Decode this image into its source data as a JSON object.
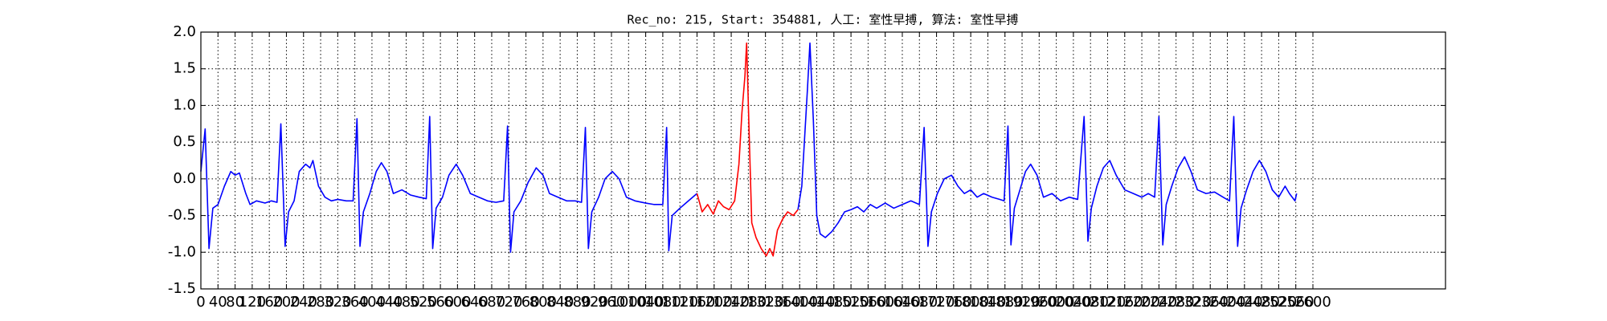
{
  "chart_data": {
    "type": "line",
    "title": "Rec_no: 215, Start: 354881, 人工: 室性早搏, 算法: 室性早搏",
    "x": [
      0,
      10,
      19,
      28,
      40,
      55,
      70,
      80,
      90,
      105,
      115,
      130,
      150,
      165,
      178,
      187,
      197,
      205,
      218,
      230,
      245,
      255,
      262,
      275,
      290,
      305,
      320,
      340,
      356,
      365,
      372,
      380,
      395,
      410,
      422,
      435,
      450,
      470,
      490,
      510,
      527,
      535,
      542,
      550,
      565,
      580,
      597,
      612,
      630,
      650,
      670,
      690,
      708,
      717,
      724,
      732,
      748,
      765,
      784,
      800,
      815,
      835,
      855,
      875,
      890,
      899,
      906,
      914,
      930,
      945,
      962,
      978,
      995,
      1015,
      1040,
      1060,
      1080,
      1089,
      1094,
      1102,
      1120,
      1140,
      1160,
      1172,
      1185,
      1198,
      1210,
      1222,
      1235,
      1248,
      1258,
      1265,
      1272,
      1276,
      1282,
      1288,
      1298,
      1310,
      1322,
      1330,
      1338,
      1348,
      1360,
      1372,
      1385,
      1396,
      1405,
      1412,
      1418,
      1424,
      1432,
      1440,
      1448,
      1460,
      1475,
      1490,
      1505,
      1520,
      1535,
      1550,
      1565,
      1580,
      1600,
      1620,
      1640,
      1660,
      1680,
      1691,
      1700,
      1708,
      1722,
      1738,
      1755,
      1770,
      1785,
      1800,
      1815,
      1830,
      1850,
      1868,
      1878,
      1887,
      1894,
      1902,
      1915,
      1928,
      1940,
      1955,
      1970,
      1990,
      2010,
      2030,
      2050,
      2065,
      2074,
      2082,
      2095,
      2110,
      2125,
      2140,
      2160,
      2180,
      2200,
      2215,
      2230,
      2240,
      2249,
      2257,
      2270,
      2285,
      2300,
      2315,
      2330,
      2350,
      2370,
      2390,
      2405,
      2415,
      2424,
      2432,
      2445,
      2460,
      2475,
      2490,
      2505,
      2520,
      2535,
      2545,
      2558,
      2562
    ],
    "series": [
      {
        "color": "#0000ff",
        "values": [
          0.1,
          0.68,
          -0.95,
          -0.4,
          -0.35,
          -0.1,
          0.1,
          0.05,
          0.08,
          -0.2,
          -0.35,
          -0.3,
          -0.33,
          -0.3,
          -0.32,
          0.75,
          -0.92,
          -0.45,
          -0.3,
          0.1,
          0.2,
          0.15,
          0.25,
          -0.1,
          -0.25,
          -0.3,
          -0.28,
          -0.3,
          -0.3,
          0.82,
          -0.92,
          -0.45,
          -0.2,
          0.1,
          0.22,
          0.1,
          -0.2,
          -0.15,
          -0.22,
          -0.25,
          -0.27,
          0.85,
          -0.95,
          -0.4,
          -0.25,
          0.05,
          0.2,
          0.05,
          -0.2,
          -0.25,
          -0.3,
          -0.32,
          -0.3,
          0.72,
          -1.0,
          -0.45,
          -0.3,
          -0.05,
          0.15,
          0.05,
          -0.2,
          -0.25,
          -0.3,
          -0.3,
          -0.32,
          0.7,
          -0.95,
          -0.45,
          -0.25,
          0.0,
          0.1,
          0.0,
          -0.25,
          -0.3,
          -0.33,
          -0.35,
          -0.35,
          0.7,
          -0.98,
          -0.5,
          -0.4,
          -0.3,
          -0.2,
          null,
          null,
          null,
          null,
          null,
          null,
          null,
          null,
          null,
          null,
          null,
          null,
          null,
          null,
          null,
          null,
          null,
          null,
          null,
          null,
          null,
          null,
          -0.42,
          -0.1,
          0.6,
          1.2,
          1.85,
          0.8,
          -0.5,
          -0.75,
          -0.8,
          -0.72,
          -0.6,
          -0.45,
          -0.42,
          -0.38,
          -0.45,
          -0.35,
          -0.4,
          -0.33,
          -0.4,
          -0.35,
          -0.3,
          -0.35,
          0.7,
          -0.92,
          -0.45,
          -0.2,
          0.0,
          0.05,
          -0.1,
          -0.2,
          -0.15,
          -0.25,
          -0.2,
          -0.25,
          -0.28,
          -0.3,
          0.72,
          -0.9,
          -0.4,
          -0.15,
          0.1,
          0.2,
          0.05,
          -0.25,
          -0.2,
          -0.3,
          -0.25,
          -0.28,
          0.85,
          -0.85,
          -0.4,
          -0.1,
          0.15,
          0.25,
          0.05,
          -0.15,
          -0.2,
          -0.25,
          -0.2,
          -0.25,
          0.85,
          -0.9,
          -0.35,
          -0.1,
          0.15,
          0.3,
          0.1,
          -0.15,
          -0.2,
          -0.18,
          -0.25,
          -0.3,
          0.85,
          -0.92,
          -0.4,
          -0.15,
          0.1,
          0.25,
          0.1,
          -0.15,
          -0.25,
          -0.1,
          -0.2,
          -0.3,
          -0.2
        ]
      },
      {
        "color": "#ff0000",
        "values": [
          null,
          null,
          null,
          null,
          null,
          null,
          null,
          null,
          null,
          null,
          null,
          null,
          null,
          null,
          null,
          null,
          null,
          null,
          null,
          null,
          null,
          null,
          null,
          null,
          null,
          null,
          null,
          null,
          null,
          null,
          null,
          null,
          null,
          null,
          null,
          null,
          null,
          null,
          null,
          null,
          null,
          null,
          null,
          null,
          null,
          null,
          null,
          null,
          null,
          null,
          null,
          null,
          null,
          null,
          null,
          null,
          null,
          null,
          null,
          null,
          null,
          null,
          null,
          null,
          null,
          null,
          null,
          null,
          null,
          null,
          null,
          null,
          null,
          null,
          null,
          null,
          null,
          null,
          null,
          null,
          null,
          null,
          -0.2,
          -0.45,
          -0.35,
          -0.48,
          -0.3,
          -0.38,
          -0.42,
          -0.3,
          0.2,
          0.9,
          1.4,
          1.85,
          0.6,
          -0.6,
          -0.8,
          -0.95,
          -1.05,
          -0.95,
          -1.05,
          -0.7,
          -0.55,
          -0.45,
          -0.5,
          -0.42,
          null,
          null,
          null,
          null,
          null,
          null,
          null,
          null,
          null,
          null,
          null,
          null,
          null,
          null,
          null,
          null,
          null,
          null,
          null,
          null,
          null,
          null,
          null,
          null,
          null,
          null,
          null,
          null,
          null,
          null,
          null,
          null,
          null,
          null,
          null,
          null,
          null,
          null,
          null,
          null,
          null,
          null,
          null,
          null,
          null,
          null,
          null,
          null,
          null,
          null,
          null,
          null,
          null,
          null,
          null,
          null,
          null,
          null,
          null,
          null,
          null,
          null,
          null,
          null,
          null,
          null,
          null,
          null,
          null,
          null,
          null,
          null,
          null,
          null,
          null,
          null,
          null,
          null,
          null,
          null,
          null,
          null,
          null,
          null
        ]
      }
    ],
    "xlim": [
      0,
      2910
    ],
    "xticks": [
      0,
      40,
      80,
      120,
      160,
      200,
      240,
      280,
      320,
      360,
      400,
      440,
      480,
      520,
      560,
      600,
      640,
      680,
      720,
      760,
      800,
      840,
      880,
      920,
      960,
      1000,
      1040,
      1080,
      1120,
      1160,
      1200,
      1240,
      1280,
      1320,
      1360,
      1400,
      1440,
      1480,
      1520,
      1560,
      1600,
      1640,
      1680,
      1720,
      1760,
      1800,
      1840,
      1880,
      1920,
      1960,
      2000,
      2040,
      2080,
      2120,
      2160,
      2200,
      2240,
      2280,
      2320,
      2360,
      2400,
      2440,
      2480,
      2520,
      2560,
      2600
    ],
    "ylim": [
      -1.5,
      2.0
    ],
    "yticks": [
      -1.5,
      {
        "value": -1.0,
        "label": "-1.0"
      },
      -0.5,
      {
        "value": 0.0,
        "label": "0.0"
      },
      0.5,
      {
        "value": 1.0,
        "label": "1.0"
      },
      1.5,
      {
        "value": 2.0,
        "label": "2.0"
      }
    ],
    "grid": true
  }
}
